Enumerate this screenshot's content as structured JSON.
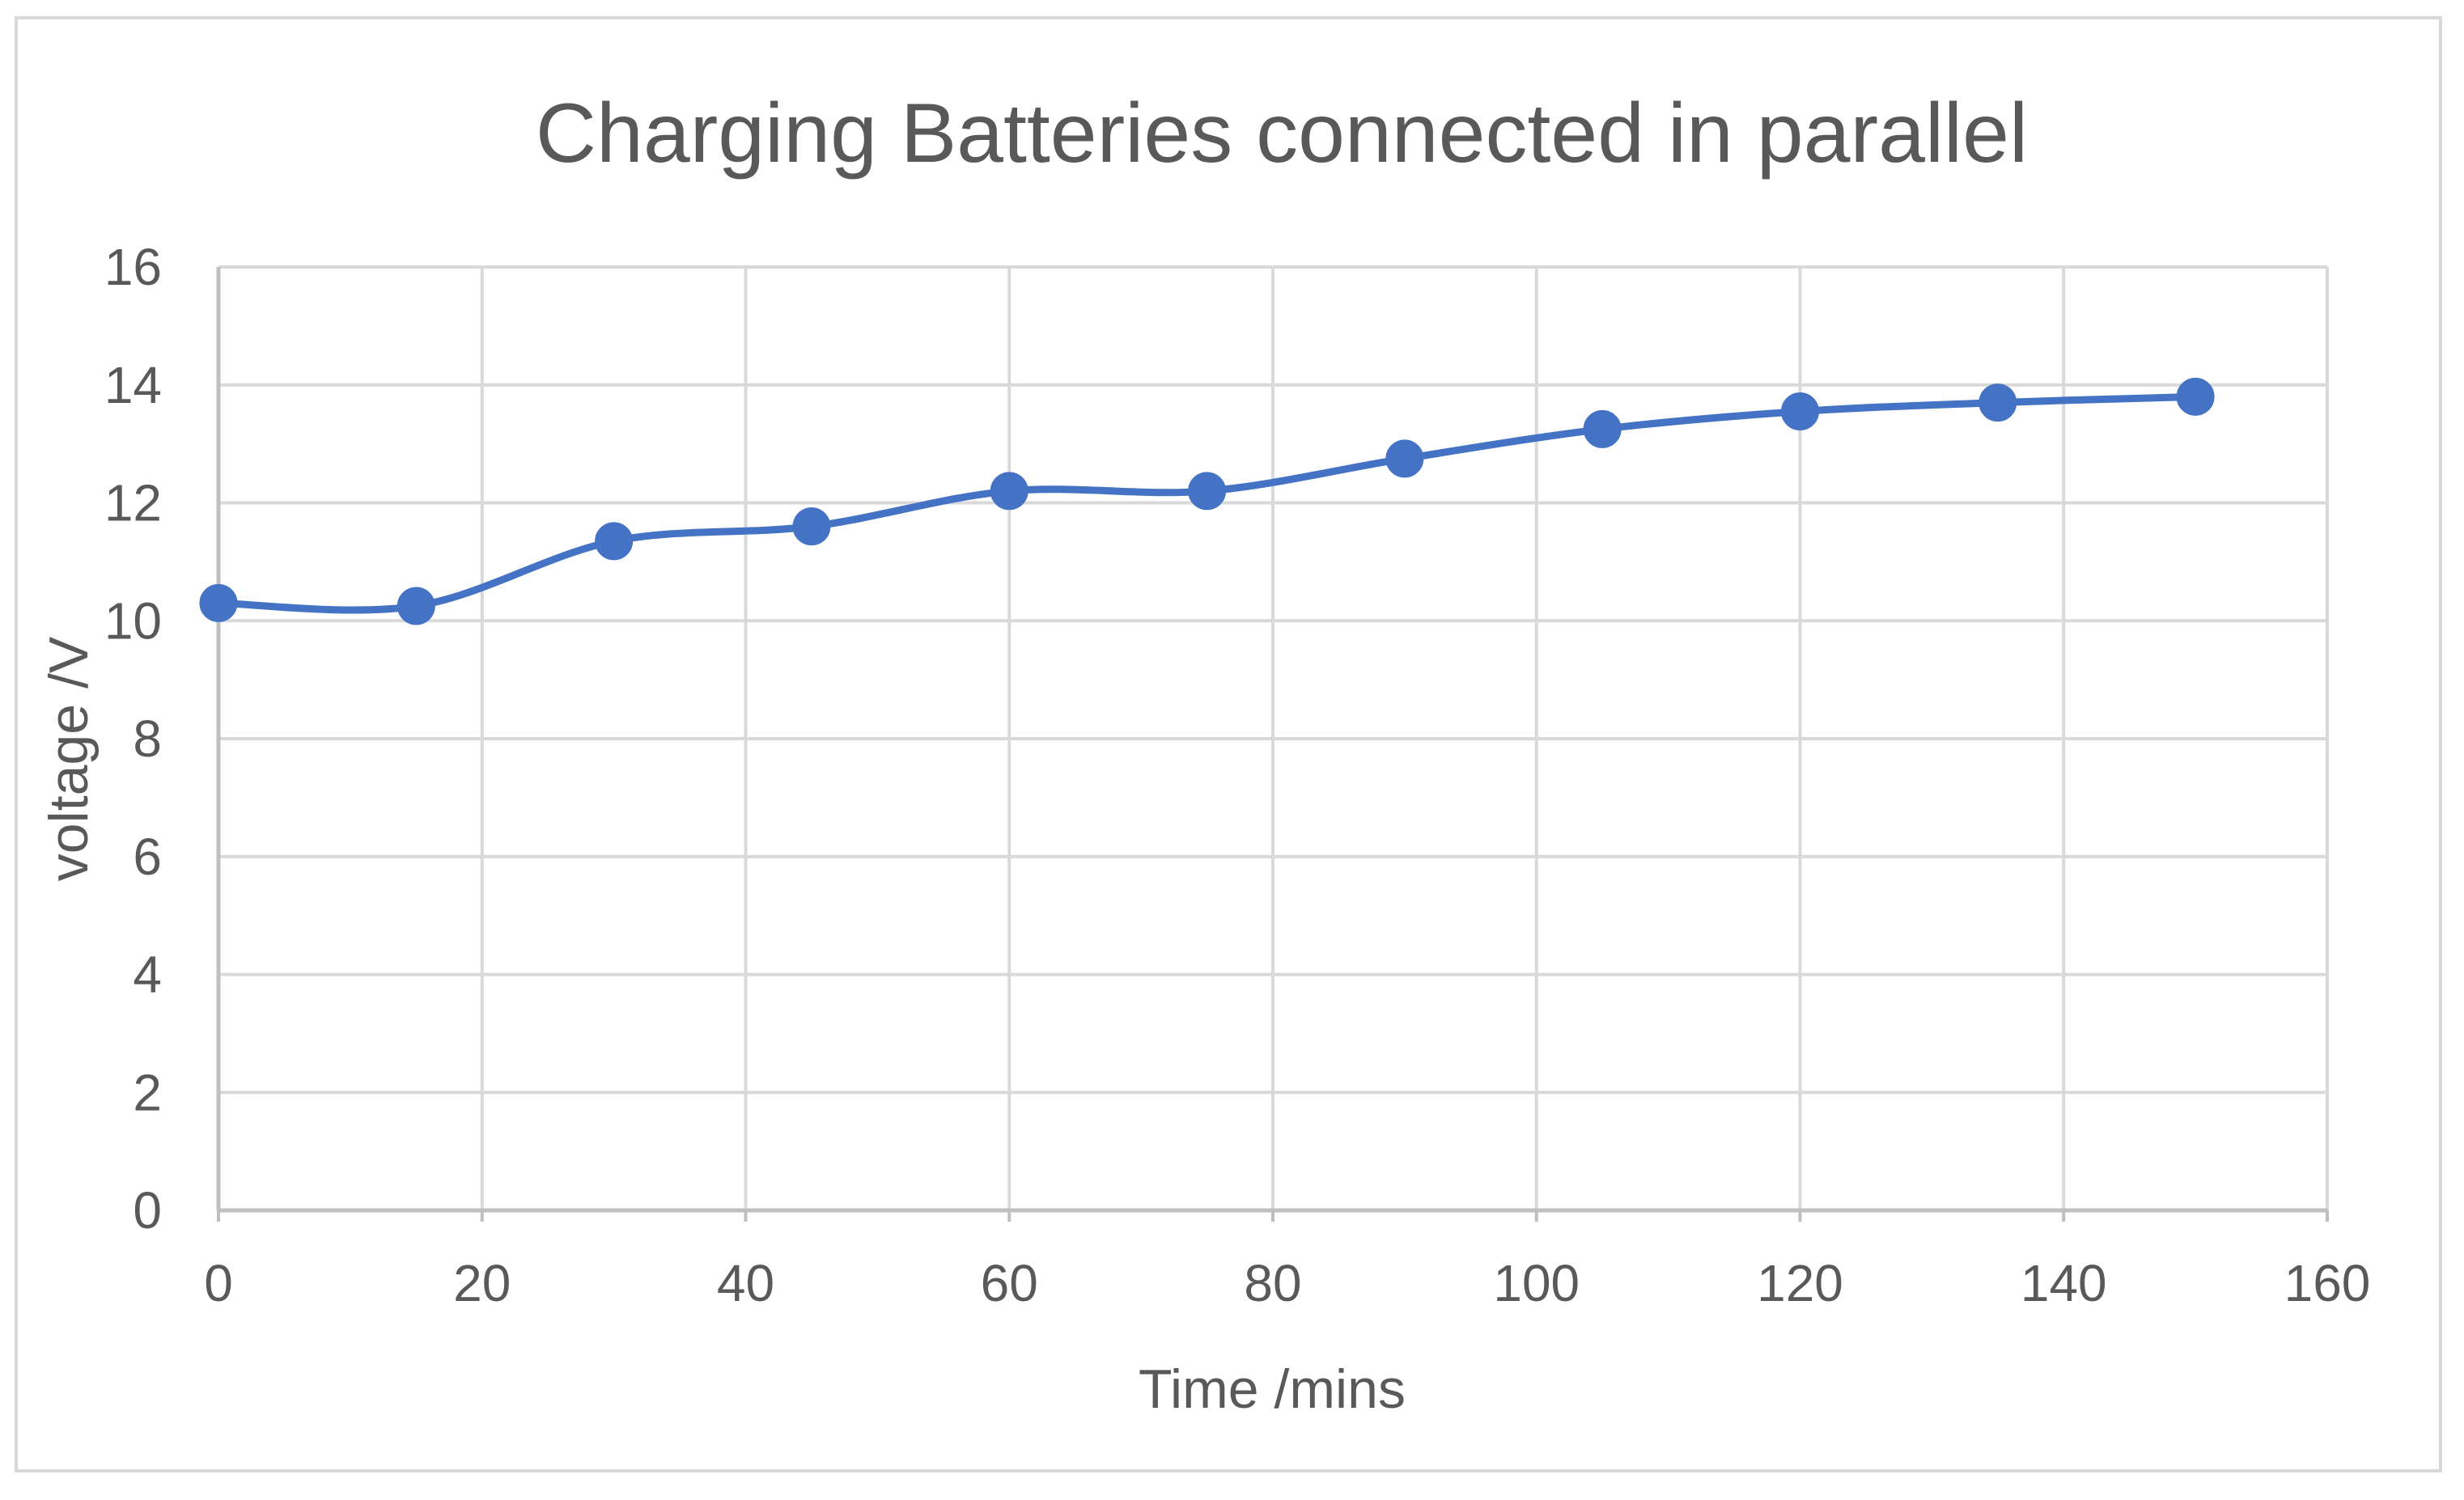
{
  "chart_data": {
    "type": "scatter",
    "title": "Charging Batteries connected in parallel",
    "xlabel": "Time /mins",
    "ylabel": "voltage /V",
    "xlim": [
      0,
      160
    ],
    "ylim": [
      0,
      16
    ],
    "x_ticks": [
      0,
      20,
      40,
      60,
      80,
      100,
      120,
      140,
      160
    ],
    "y_ticks": [
      0,
      2,
      4,
      6,
      8,
      10,
      12,
      14,
      16
    ],
    "grid": true,
    "legend": "none",
    "smooth_line": true,
    "series": [
      {
        "color": "#4472c4",
        "points": [
          {
            "x": 0,
            "y": 10.3
          },
          {
            "x": 15,
            "y": 10.25
          },
          {
            "x": 30,
            "y": 11.35
          },
          {
            "x": 45,
            "y": 11.6
          },
          {
            "x": 60,
            "y": 12.2
          },
          {
            "x": 75,
            "y": 12.2
          },
          {
            "x": 90,
            "y": 12.75
          },
          {
            "x": 105,
            "y": 13.25
          },
          {
            "x": 120,
            "y": 13.55
          },
          {
            "x": 135,
            "y": 13.7
          },
          {
            "x": 150,
            "y": 13.8
          }
        ]
      }
    ]
  },
  "colors": {
    "gridline": "#d9d9d9",
    "axis_line": "#bfbfbf",
    "text": "#595959",
    "series": "#4472c4"
  }
}
